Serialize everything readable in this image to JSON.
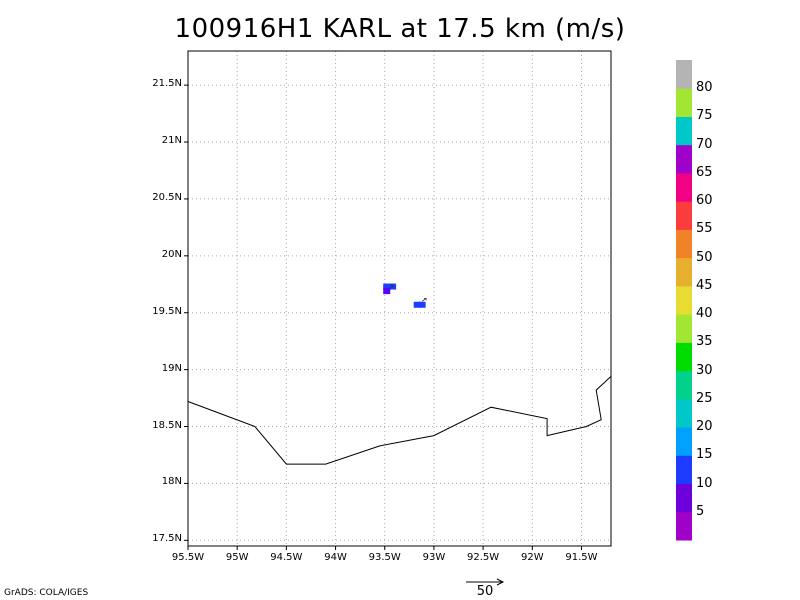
{
  "title": "100916H1 KARL at 17.5 km (m/s)",
  "credit": "GrADS: COLA/IGES",
  "map": {
    "lon_range": [
      -95.5,
      -91.2
    ],
    "lat_range": [
      17.45,
      21.8
    ],
    "y_ticks": [
      {
        "value": 17.5,
        "label": "17.5N"
      },
      {
        "value": 18.0,
        "label": "18N"
      },
      {
        "value": 18.5,
        "label": "18.5N"
      },
      {
        "value": 19.0,
        "label": "19N"
      },
      {
        "value": 19.5,
        "label": "19.5N"
      },
      {
        "value": 20.0,
        "label": "20N"
      },
      {
        "value": 20.5,
        "label": "20.5N"
      },
      {
        "value": 21.0,
        "label": "21N"
      },
      {
        "value": 21.5,
        "label": "21.5N"
      }
    ],
    "x_ticks": [
      {
        "value": -95.5,
        "label": "95.5W"
      },
      {
        "value": -95.0,
        "label": "95W"
      },
      {
        "value": -94.5,
        "label": "94.5W"
      },
      {
        "value": -94.0,
        "label": "94W"
      },
      {
        "value": -93.5,
        "label": "93.5W"
      },
      {
        "value": -93.0,
        "label": "93W"
      },
      {
        "value": -92.5,
        "label": "92.5W"
      },
      {
        "value": -92.0,
        "label": "92W"
      },
      {
        "value": -91.5,
        "label": "91.5W"
      }
    ],
    "coastline": [
      [
        -95.5,
        18.72
      ],
      [
        -94.82,
        18.5
      ],
      [
        -94.5,
        18.17
      ],
      [
        -94.1,
        18.17
      ],
      [
        -93.55,
        18.33
      ],
      [
        -93.0,
        18.42
      ],
      [
        -92.42,
        18.67
      ],
      [
        -91.85,
        18.57
      ],
      [
        -91.85,
        18.42
      ],
      [
        -91.45,
        18.5
      ],
      [
        -91.3,
        18.56
      ],
      [
        -91.35,
        18.82
      ],
      [
        -91.2,
        18.94
      ]
    ],
    "data_cells": [
      {
        "lon": -93.48,
        "lat": 19.73,
        "speed": 15,
        "color": "#1e3cff"
      },
      {
        "lon": -93.42,
        "lat": 19.73,
        "speed": 15,
        "color": "#1e3cff"
      },
      {
        "lon": -93.48,
        "lat": 19.69,
        "speed": 12,
        "color": "#5a00ff"
      },
      {
        "lon": -93.17,
        "lat": 19.57,
        "speed": 15,
        "color": "#1e3cff"
      },
      {
        "lon": -93.12,
        "lat": 19.57,
        "speed": 15,
        "color": "#1e3cff"
      }
    ],
    "reference_vector": {
      "label": "50",
      "units": "m/s"
    }
  },
  "colorbar": {
    "labels": [
      "5",
      "10",
      "15",
      "20",
      "25",
      "30",
      "35",
      "40",
      "45",
      "50",
      "55",
      "60",
      "65",
      "70",
      "75",
      "80"
    ],
    "colors": [
      "#a000c8",
      "#6e00dc",
      "#1e3cff",
      "#00a0ff",
      "#00c8c8",
      "#00d28c",
      "#00dc00",
      "#a0e632",
      "#e6dc32",
      "#e6af2d",
      "#f08228",
      "#fa3c3c",
      "#f00082",
      "#a000c8",
      "#00c8c8",
      "#a0e632",
      "#b4b4b4"
    ]
  }
}
